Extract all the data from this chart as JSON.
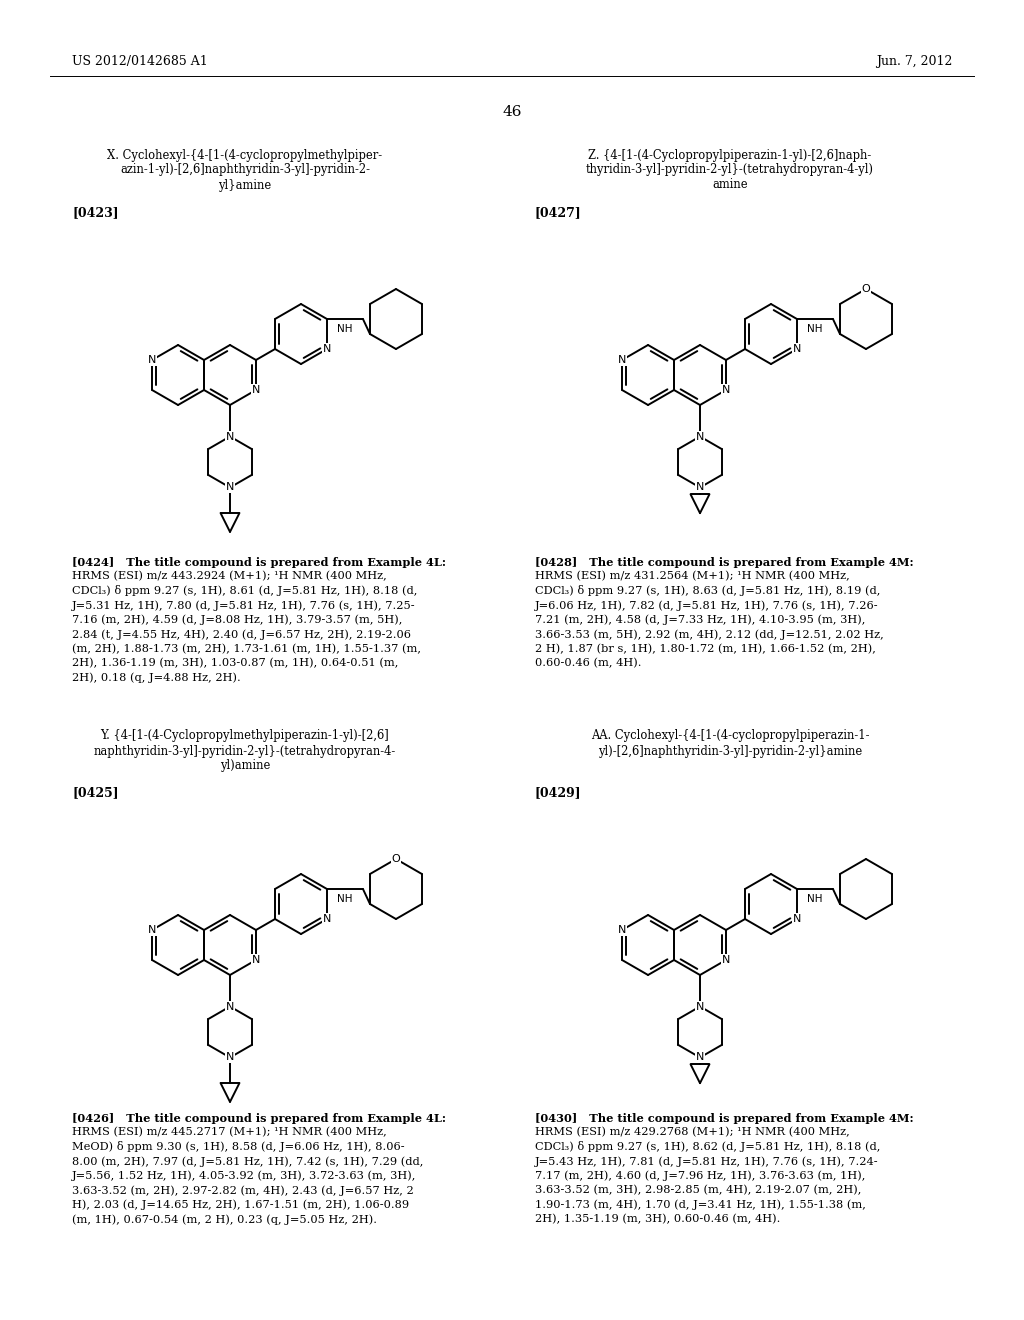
{
  "background_color": "#ffffff",
  "header_left": "US 2012/0142685 A1",
  "header_right": "Jun. 7, 2012",
  "page_number": "46",
  "title_x_lines": [
    "X. Cyclohexyl-{4-[1-(4-cyclopropylmethylpiper-",
    "azin-1-yl)-[2,6]naphthyridin-3-yl]-pyridin-2-",
    "yl}amine"
  ],
  "title_z_lines": [
    "Z. {4-[1-(4-Cyclopropylpiperazin-1-yl)-[2,6]naph-",
    "thyridin-3-yl]-pyridin-2-yl}-(tetrahydropyran-4-yl)",
    "amine"
  ],
  "title_y_lines": [
    "Y. {4-[1-(4-Cyclopropylmethylpiperazin-1-yl)-[2,6]",
    "naphthyridin-3-yl]-pyridin-2-yl}-(tetrahydropyran-4-",
    "yl)amine"
  ],
  "title_aa_lines": [
    "AA. Cyclohexyl-{4-[1-(4-cyclopropylpiperazin-1-",
    "yl)-[2,6]naphthyridin-3-yl]-pyridin-2-yl}amine"
  ],
  "ref_x": "[0423]",
  "ref_z": "[0427]",
  "ref_y": "[0425]",
  "ref_aa": "[0429]",
  "nmr_lines_x": [
    "[0424]   The title compound is prepared from Example 4L:",
    "HRMS (ESI) m/z 443.2924 (M+1); ¹H NMR (400 MHz,",
    "CDCl₃) δ ppm 9.27 (s, 1H), 8.61 (d, J=5.81 Hz, 1H), 8.18 (d,",
    "J=5.31 Hz, 1H), 7.80 (d, J=5.81 Hz, 1H), 7.76 (s, 1H), 7.25-",
    "7.16 (m, 2H), 4.59 (d, J=8.08 Hz, 1H), 3.79-3.57 (m, 5H),",
    "2.84 (t, J=4.55 Hz, 4H), 2.40 (d, J=6.57 Hz, 2H), 2.19-2.06",
    "(m, 2H), 1.88-1.73 (m, 2H), 1.73-1.61 (m, 1H), 1.55-1.37 (m,",
    "2H), 1.36-1.19 (m, 3H), 1.03-0.87 (m, 1H), 0.64-0.51 (m,",
    "2H), 0.18 (q, J=4.88 Hz, 2H)."
  ],
  "nmr_lines_z": [
    "[0428]   The title compound is prepared from Example 4M:",
    "HRMS (ESI) m/z 431.2564 (M+1); ¹H NMR (400 MHz,",
    "CDCl₃) δ ppm 9.27 (s, 1H), 8.63 (d, J=5.81 Hz, 1H), 8.19 (d,",
    "J=6.06 Hz, 1H), 7.82 (d, J=5.81 Hz, 1H), 7.76 (s, 1H), 7.26-",
    "7.21 (m, 2H), 4.58 (d, J=7.33 Hz, 1H), 4.10-3.95 (m, 3H),",
    "3.66-3.53 (m, 5H), 2.92 (m, 4H), 2.12 (dd, J=12.51, 2.02 Hz,",
    "2 H), 1.87 (br s, 1H), 1.80-1.72 (m, 1H), 1.66-1.52 (m, 2H),",
    "0.60-0.46 (m, 4H)."
  ],
  "nmr_lines_y": [
    "[0426]   The title compound is prepared from Example 4L:",
    "HRMS (ESI) m/z 445.2717 (M+1); ¹H NMR (400 MHz,",
    "MeOD) δ ppm 9.30 (s, 1H), 8.58 (d, J=6.06 Hz, 1H), 8.06-",
    "8.00 (m, 2H), 7.97 (d, J=5.81 Hz, 1H), 7.42 (s, 1H), 7.29 (dd,",
    "J=5.56, 1.52 Hz, 1H), 4.05-3.92 (m, 3H), 3.72-3.63 (m, 3H),",
    "3.63-3.52 (m, 2H), 2.97-2.82 (m, 4H), 2.43 (d, J=6.57 Hz, 2",
    "H), 2.03 (d, J=14.65 Hz, 2H), 1.67-1.51 (m, 2H), 1.06-0.89",
    "(m, 1H), 0.67-0.54 (m, 2 H), 0.23 (q, J=5.05 Hz, 2H)."
  ],
  "nmr_lines_aa": [
    "[0430]   The title compound is prepared from Example 4M:",
    "HRMS (ESI) m/z 429.2768 (M+1); ¹H NMR (400 MHz,",
    "CDCl₃) δ ppm 9.27 (s, 1H), 8.62 (d, J=5.81 Hz, 1H), 8.18 (d,",
    "J=5.43 Hz, 1H), 7.81 (d, J=5.81 Hz, 1H), 7.76 (s, 1H), 7.24-",
    "7.17 (m, 2H), 4.60 (d, J=7.96 Hz, 1H), 3.76-3.63 (m, 1H),",
    "3.63-3.52 (m, 3H), 2.98-2.85 (m, 4H), 2.19-2.07 (m, 2H),",
    "1.90-1.73 (m, 4H), 1.70 (d, J=3.41 Hz, 1H), 1.55-1.38 (m,",
    "2H), 1.35-1.19 (m, 3H), 0.60-0.46 (m, 4H)."
  ]
}
